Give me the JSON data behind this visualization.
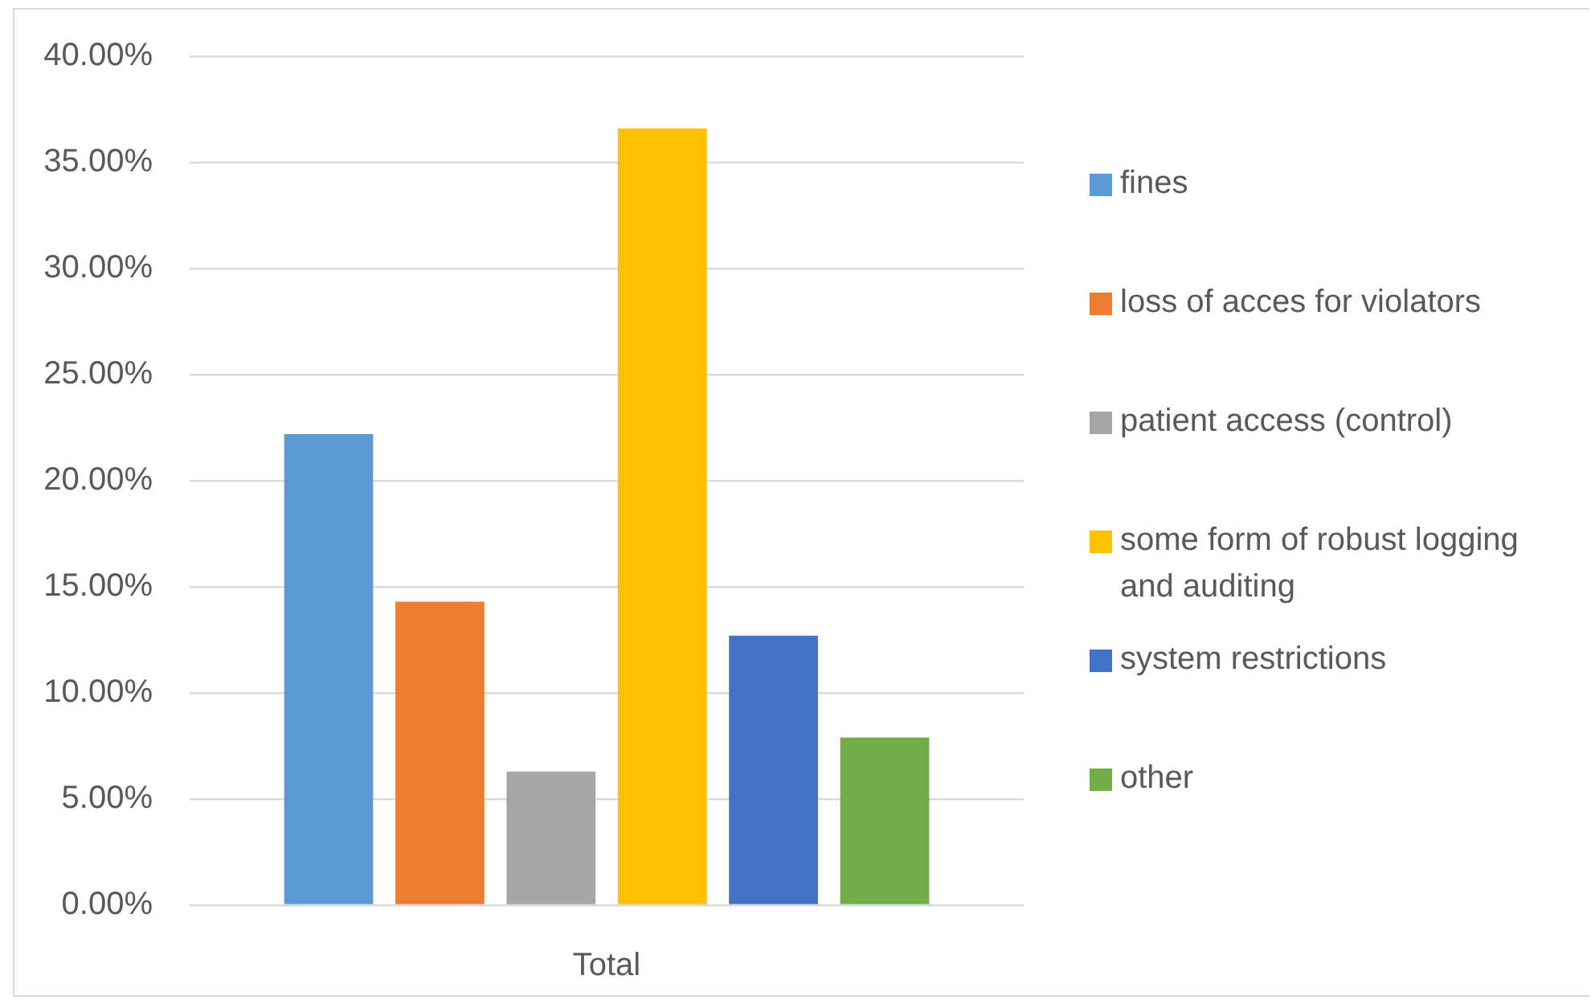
{
  "chart_data": {
    "type": "bar",
    "categories": [
      "Total"
    ],
    "series": [
      {
        "name": "fines",
        "color": "#5b9bd5",
        "values": [
          22.2
        ]
      },
      {
        "name": "loss of acces for violators",
        "color": "#ed7d31",
        "values": [
          14.3
        ]
      },
      {
        "name": "patient access (control)",
        "color": "#a5a5a5",
        "values": [
          6.3
        ]
      },
      {
        "name": "some form of robust logging and auditing",
        "color": "#ffc000",
        "values": [
          36.6
        ]
      },
      {
        "name": "system restrictions",
        "color": "#4472c4",
        "values": [
          12.7
        ]
      },
      {
        "name": "other",
        "color": "#70ad47",
        "values": [
          7.9
        ]
      }
    ],
    "ylim": [
      0,
      40
    ],
    "yticks": [
      {
        "value": 0,
        "label": "0.00%"
      },
      {
        "value": 5,
        "label": "5.00%"
      },
      {
        "value": 10,
        "label": "10.00%"
      },
      {
        "value": 15,
        "label": "15.00%"
      },
      {
        "value": 20,
        "label": "20.00%"
      },
      {
        "value": 25,
        "label": "25.00%"
      },
      {
        "value": 30,
        "label": "30.00%"
      },
      {
        "value": 35,
        "label": "35.00%"
      },
      {
        "value": 40,
        "label": "40.00%"
      }
    ],
    "grid": "y",
    "legend": "right"
  }
}
